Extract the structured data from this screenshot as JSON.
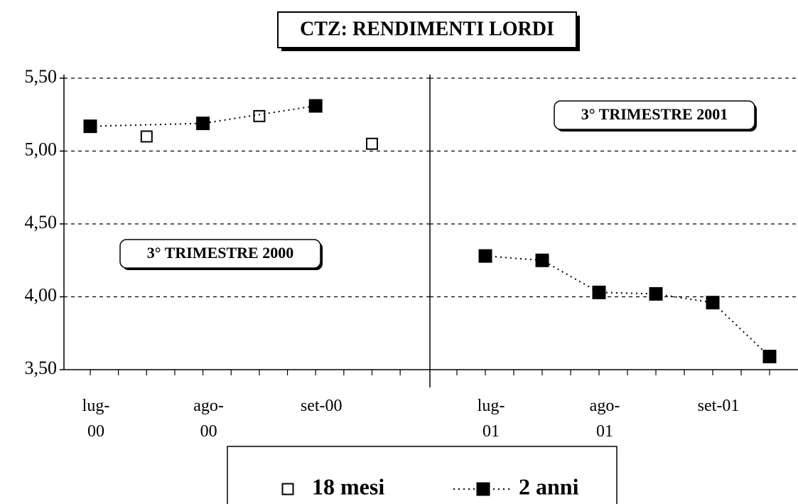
{
  "title": "CTZ: RENDIMENTI LORDI",
  "chart_data": [
    {
      "type": "line",
      "annotation": "3° TRIMESTRE 2000",
      "categories": [
        "lug-\n00",
        null,
        "ago-\n00",
        null,
        "set-00",
        null
      ],
      "series": [
        {
          "name": "18 mesi",
          "color": "#000000",
          "marker": "open",
          "line": "none",
          "values": [
            null,
            5.1,
            null,
            5.24,
            null,
            5.05
          ]
        },
        {
          "name": "2 anni",
          "color": "#000000",
          "marker": "filled",
          "line": "dotted",
          "connect_gaps": true,
          "values": [
            5.17,
            null,
            5.19,
            null,
            5.31,
            null
          ]
        }
      ],
      "ylim": [
        3.5,
        5.5
      ],
      "yticks": [
        {
          "value": 3.5,
          "label": "3,50"
        },
        {
          "value": 4,
          "label": "4,00"
        },
        {
          "value": 4.5,
          "label": "4,50"
        },
        {
          "value": 5,
          "label": "5,00"
        },
        {
          "value": 5.5,
          "label": "5,50"
        }
      ],
      "grid": true
    },
    {
      "type": "line",
      "annotation": "3° TRIMESTRE 2001",
      "categories": [
        "lug-\n01",
        null,
        "ago-\n01",
        null,
        "set-01",
        null
      ],
      "series": [
        {
          "color": "#000000",
          "marker": "filled",
          "line": "dotted",
          "values": [
            4.28,
            4.25,
            4.03,
            4.02,
            3.96,
            3.59
          ]
        }
      ],
      "ylim": [
        3.5,
        5.5
      ],
      "yticks": [
        3.5,
        4,
        4.5,
        5,
        5.5
      ],
      "grid": true
    }
  ]
}
